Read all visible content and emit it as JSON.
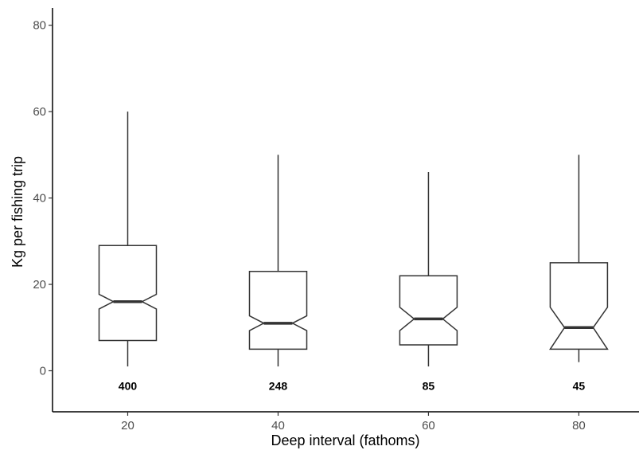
{
  "chart_data": {
    "type": "boxplot",
    "title": "",
    "xlabel": "Deep interval (fathoms)",
    "ylabel": "Kg per fishing trip",
    "xlim": [
      10,
      88
    ],
    "ylim": [
      -9.5,
      84
    ],
    "x_ticks": [
      "20",
      "40",
      "60",
      "80"
    ],
    "y_ticks": [
      "0",
      "20",
      "40",
      "60",
      "80"
    ],
    "grid": false,
    "notched": true,
    "colors": {
      "box_fill": "#ffffff",
      "line": "#333333",
      "median": "#333333",
      "axis": "#000000"
    },
    "boxes": [
      {
        "x": 20,
        "whisker_low": 1,
        "q1": 7,
        "median": 16,
        "q3": 29,
        "whisker_high": 60,
        "notch_low": 14.3,
        "notch_high": 17.7,
        "n": "400"
      },
      {
        "x": 40,
        "whisker_low": 1,
        "q1": 5,
        "median": 11,
        "q3": 23,
        "whisker_high": 50,
        "notch_low": 9.3,
        "notch_high": 12.7,
        "n": "248"
      },
      {
        "x": 60,
        "whisker_low": 1,
        "q1": 6,
        "median": 12,
        "q3": 22,
        "whisker_high": 46,
        "notch_low": 9.3,
        "notch_high": 14.7,
        "n": "85"
      },
      {
        "x": 80,
        "whisker_low": 2,
        "q1": 5,
        "median": 10,
        "q3": 25,
        "whisker_high": 50,
        "notch_low": 5,
        "notch_high": 14.7,
        "n": "45"
      }
    ],
    "count_label_y": -3.5
  }
}
